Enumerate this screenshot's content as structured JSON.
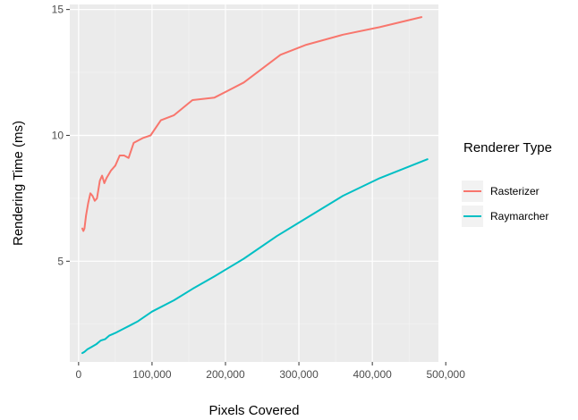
{
  "chart_data": {
    "type": "line",
    "title": "",
    "xlabel": "Pixels Covered",
    "ylabel": "Rendering Time (ms)",
    "xlim": [
      -12000,
      490000
    ],
    "ylim": [
      1.0,
      15.2
    ],
    "x_ticks": [
      0,
      100000,
      200000,
      300000,
      400000,
      500000
    ],
    "x_tick_labels": [
      "0",
      "100,000",
      "200,000",
      "300,000",
      "400,000",
      "500,000"
    ],
    "y_ticks": [
      5,
      10,
      15
    ],
    "y_tick_labels": [
      "5",
      "10",
      "15"
    ],
    "grid": true,
    "legend": {
      "title": "Renderer Type",
      "position": "right"
    },
    "series": [
      {
        "name": "Rasterizer",
        "color": "#F8766D",
        "points": [
          [
            5000,
            6.3
          ],
          [
            6500,
            6.2
          ],
          [
            8000,
            6.3
          ],
          [
            10000,
            6.8
          ],
          [
            13000,
            7.3
          ],
          [
            16000,
            7.7
          ],
          [
            19000,
            7.6
          ],
          [
            22000,
            7.4
          ],
          [
            25000,
            7.5
          ],
          [
            29000,
            8.2
          ],
          [
            32000,
            8.4
          ],
          [
            35000,
            8.1
          ],
          [
            38000,
            8.3
          ],
          [
            44000,
            8.6
          ],
          [
            50000,
            8.8
          ],
          [
            56000,
            9.2
          ],
          [
            62000,
            9.2
          ],
          [
            68000,
            9.1
          ],
          [
            75000,
            9.7
          ],
          [
            88000,
            9.9
          ],
          [
            98000,
            10.0
          ],
          [
            112000,
            10.6
          ],
          [
            130000,
            10.8
          ],
          [
            155000,
            11.4
          ],
          [
            185000,
            11.5
          ],
          [
            225000,
            12.1
          ],
          [
            275000,
            13.2
          ],
          [
            310000,
            13.6
          ],
          [
            360000,
            14.0
          ],
          [
            410000,
            14.3
          ],
          [
            467000,
            14.7
          ]
        ]
      },
      {
        "name": "Raymarcher",
        "color": "#00BFC4",
        "points": [
          [
            5000,
            1.35
          ],
          [
            8000,
            1.4
          ],
          [
            12000,
            1.5
          ],
          [
            18000,
            1.6
          ],
          [
            24000,
            1.7
          ],
          [
            30000,
            1.85
          ],
          [
            36000,
            1.9
          ],
          [
            42000,
            2.05
          ],
          [
            50000,
            2.15
          ],
          [
            60000,
            2.3
          ],
          [
            70000,
            2.45
          ],
          [
            80000,
            2.6
          ],
          [
            100000,
            3.0
          ],
          [
            130000,
            3.45
          ],
          [
            155000,
            3.9
          ],
          [
            185000,
            4.4
          ],
          [
            225000,
            5.1
          ],
          [
            270000,
            6.0
          ],
          [
            315000,
            6.8
          ],
          [
            360000,
            7.6
          ],
          [
            410000,
            8.3
          ],
          [
            475000,
            9.05
          ]
        ]
      }
    ]
  }
}
